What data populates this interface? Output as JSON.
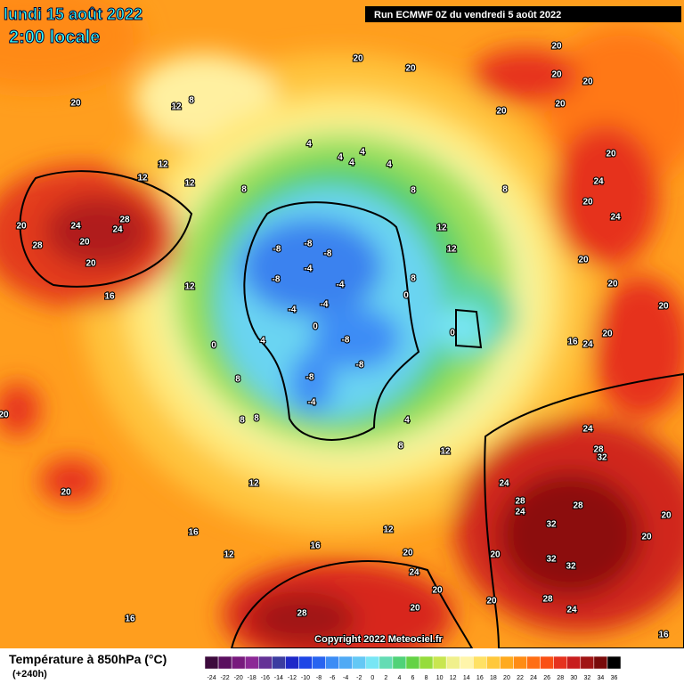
{
  "header": {
    "date": "lundi 15 août 2022",
    "time": "2:00 locale",
    "run": "Run ECMWF 0Z du vendredi 5 août 2022"
  },
  "map": {
    "labels": [
      20,
      20,
      20,
      20,
      20,
      20,
      8,
      12,
      12,
      12,
      12,
      20,
      20,
      4,
      4,
      4,
      4,
      4,
      8,
      8,
      8,
      20,
      24,
      20,
      24,
      24,
      28,
      24,
      20,
      28,
      20,
      20,
      16,
      12,
      12,
      12,
      -8,
      -8,
      -8,
      -4,
      -8,
      -4,
      -4,
      0,
      8,
      20,
      20,
      20,
      -4,
      0,
      0,
      -8,
      4,
      0,
      16,
      24,
      20,
      -8,
      -8,
      -4,
      8,
      8,
      8,
      4,
      8,
      12,
      24,
      28,
      32,
      24,
      12,
      20,
      28,
      24,
      28,
      32,
      20,
      20,
      16,
      12,
      16,
      12,
      20,
      20,
      32,
      32,
      24,
      20,
      28,
      20,
      20,
      28,
      24,
      16,
      16,
      20
    ]
  },
  "copyright": "Copyright 2022 Meteociel.fr",
  "legend": {
    "title": "Température à 850hPa (°C)",
    "subtitle": "(+240h)",
    "ticks": [
      -24,
      -22,
      -20,
      -18,
      -16,
      -14,
      -12,
      -10,
      -8,
      -6,
      -4,
      -2,
      0,
      2,
      4,
      6,
      8,
      10,
      12,
      14,
      16,
      18,
      20,
      22,
      24,
      26,
      28,
      30,
      32,
      34,
      36
    ],
    "colors": [
      "#3c0a3c",
      "#5a0f5f",
      "#781a7d",
      "#8c2896",
      "#643296",
      "#3c3ca0",
      "#1e28c8",
      "#1e46e6",
      "#2864f0",
      "#3c8cf5",
      "#50aaf5",
      "#64c8f5",
      "#78e6f5",
      "#64dcb4",
      "#50d278",
      "#64d246",
      "#96dc3c",
      "#c8e650",
      "#f0f08c",
      "#fff5aa",
      "#ffe164",
      "#ffc83c",
      "#ffaa1e",
      "#ff8c14",
      "#ff6e14",
      "#fa5014",
      "#e6321e",
      "#c81e1e",
      "#a01414",
      "#780a0a",
      "#000000"
    ]
  }
}
